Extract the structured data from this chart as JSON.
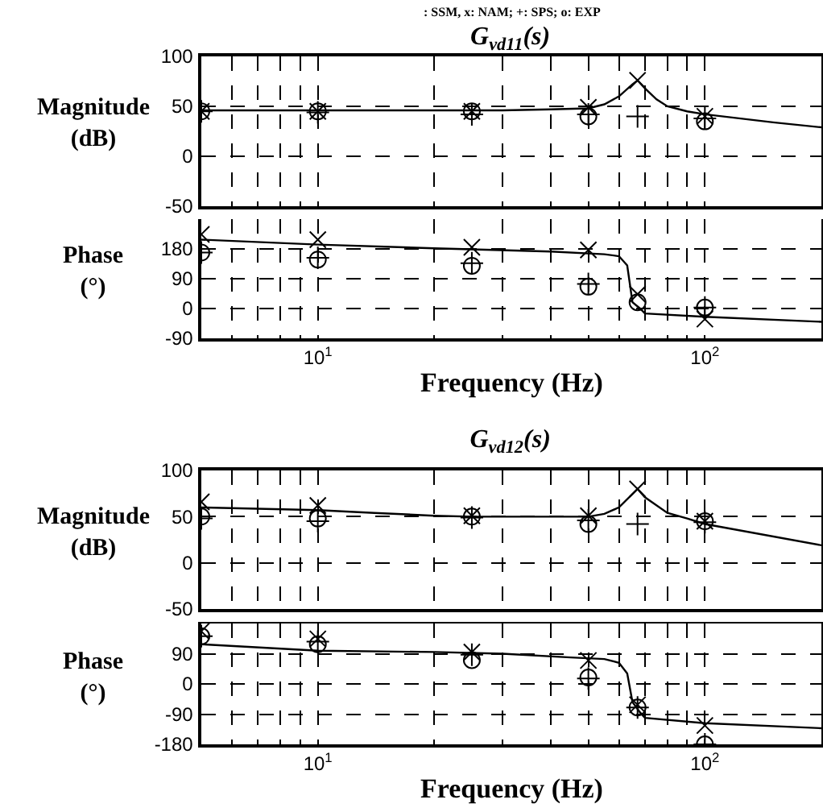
{
  "chart_data": [
    {
      "type": "line",
      "title": "G$_{vd11}$(s)",
      "ylabel": "Magnitude (dB)",
      "annotations": [
        ": SSM, x: NAM; +: SPS; o: EXP"
      ],
      "log": "x",
      "xlim": [
        5,
        200
      ],
      "xticks": [
        {
          "value": 6,
          "label": null
        },
        {
          "value": 7,
          "label": null
        },
        {
          "value": 8,
          "label": null
        },
        {
          "value": 9,
          "label": null
        },
        {
          "value": 10,
          "label": null
        },
        {
          "value": 20,
          "label": null
        },
        {
          "value": 30,
          "label": null
        },
        {
          "value": 40,
          "label": null
        },
        {
          "value": 50,
          "label": null
        },
        {
          "value": 60,
          "label": null
        },
        {
          "value": 70,
          "label": null
        },
        {
          "value": 80,
          "label": null
        },
        {
          "value": 90,
          "label": null
        },
        {
          "value": 100,
          "label": null
        }
      ],
      "ylim": [
        -50,
        100
      ],
      "yticks": [
        -50,
        0,
        50,
        100
      ],
      "grid": true,
      "tick_labels": "y",
      "series": [
        {
          "color": "#000000",
          "marker": "none",
          "x": [
            5,
            10,
            20,
            30,
            40,
            50,
            55,
            60,
            65,
            67,
            70,
            75,
            80,
            90,
            100,
            150,
            200
          ],
          "values": [
            46,
            46,
            46,
            46,
            47,
            48,
            52,
            60,
            72,
            76,
            68,
            57,
            50,
            45,
            42,
            34,
            29
          ]
        },
        {
          "type": "scatter",
          "color": "#000000",
          "x": [
            5,
            10,
            25,
            50,
            67,
            100
          ],
          "values": [
            45,
            45,
            45,
            49,
            76,
            40
          ]
        },
        {
          "type": "scatter",
          "color": "#000000",
          "x": [
            5,
            10,
            25,
            50,
            67,
            100
          ],
          "values": [
            45,
            44,
            42,
            42,
            40,
            38
          ]
        },
        {
          "type": "scatter",
          "color": "#000000",
          "x": [
            5,
            10,
            25,
            50,
            67,
            100
          ],
          "values": [
            45,
            45,
            45,
            40,
            null,
            35
          ]
        }
      ]
    },
    {
      "type": "line",
      "xlabel": "Frequency (Hz)",
      "ylabel": "Phase (°)",
      "log": "x",
      "xlim": [
        5,
        200
      ],
      "xticks": [
        {
          "value": 6,
          "label": null
        },
        {
          "value": 7,
          "label": null
        },
        {
          "value": 8,
          "label": null
        },
        {
          "value": 9,
          "label": null
        },
        {
          "value": 10,
          "label": "10$^{1}$"
        },
        {
          "value": 20,
          "label": null
        },
        {
          "value": 30,
          "label": null
        },
        {
          "value": 40,
          "label": null
        },
        {
          "value": 50,
          "label": null
        },
        {
          "value": 60,
          "label": null
        },
        {
          "value": 70,
          "label": null
        },
        {
          "value": 80,
          "label": null
        },
        {
          "value": 90,
          "label": null
        },
        {
          "value": 100,
          "label": "10$^{2}$"
        }
      ],
      "ylim": [
        -90,
        270
      ],
      "yticks": [
        -90,
        0,
        90,
        180
      ],
      "grid": true,
      "series": [
        {
          "color": "#000000",
          "marker": "none",
          "x": [
            5,
            10,
            20,
            40,
            55,
            60,
            63,
            65,
            68,
            70,
            100,
            200
          ],
          "values": [
            208,
            193,
            182,
            172,
            164,
            158,
            130,
            19,
            0,
            -15,
            -25,
            -40
          ]
        },
        {
          "type": "scatter",
          "color": "#000000",
          "x": [
            5,
            10,
            25,
            50,
            67,
            100
          ],
          "values": [
            224,
            208,
            185,
            177,
            43,
            -32
          ]
        },
        {
          "type": "scatter",
          "color": "#000000",
          "x": [
            5,
            10,
            25,
            50,
            67,
            100
          ],
          "values": [
            169,
            153,
            137,
            74,
            null,
            3
          ]
        },
        {
          "type": "scatter",
          "color": "#000000",
          "x": [
            5,
            10,
            25,
            50,
            67,
            100
          ],
          "values": [
            169,
            148,
            129,
            66,
            19,
            3
          ]
        }
      ]
    },
    {
      "type": "line",
      "title": "G$_{vd12}$(s)",
      "ylabel": "Magnitude (dB)",
      "log": "x",
      "xlim": [
        5,
        200
      ],
      "xticks": [
        {
          "value": 6,
          "label": null
        },
        {
          "value": 7,
          "label": null
        },
        {
          "value": 8,
          "label": null
        },
        {
          "value": 9,
          "label": null
        },
        {
          "value": 10,
          "label": null
        },
        {
          "value": 20,
          "label": null
        },
        {
          "value": 30,
          "label": null
        },
        {
          "value": 40,
          "label": null
        },
        {
          "value": 50,
          "label": null
        },
        {
          "value": 60,
          "label": null
        },
        {
          "value": 70,
          "label": null
        },
        {
          "value": 80,
          "label": null
        },
        {
          "value": 90,
          "label": null
        },
        {
          "value": 100,
          "label": null
        }
      ],
      "ylim": [
        -50,
        100
      ],
      "yticks": [
        -50,
        0,
        50,
        100
      ],
      "grid": true,
      "tick_labels": "y",
      "series": [
        {
          "color": "#000000",
          "marker": "none",
          "x": [
            5,
            10,
            14,
            20,
            25,
            50,
            55,
            60,
            67,
            70,
            80,
            90,
            100,
            200
          ],
          "values": [
            60,
            57,
            54,
            51,
            50,
            50,
            53,
            60,
            80,
            71,
            54,
            48,
            42,
            19
          ]
        },
        {
          "type": "scatter",
          "color": "#000000",
          "x": [
            5,
            10,
            25,
            50,
            67,
            100
          ],
          "values": [
            66,
            62,
            51,
            51,
            80,
            45
          ]
        },
        {
          "type": "scatter",
          "color": "#000000",
          "x": [
            5,
            10,
            25,
            50,
            67,
            100
          ],
          "values": [
            48,
            45,
            49,
            46,
            42,
            44
          ]
        },
        {
          "type": "scatter",
          "color": "#000000",
          "x": [
            5,
            10,
            25,
            50,
            67,
            100
          ],
          "values": [
            50,
            48,
            50,
            42,
            null,
            45
          ]
        }
      ]
    },
    {
      "type": "line",
      "xlabel": "Frequency (Hz)",
      "ylabel": "Phase (°)",
      "log": "x",
      "xlim": [
        5,
        200
      ],
      "xticks": [
        {
          "value": 6,
          "label": null
        },
        {
          "value": 7,
          "label": null
        },
        {
          "value": 8,
          "label": null
        },
        {
          "value": 9,
          "label": null
        },
        {
          "value": 10,
          "label": "10$^{1}$"
        },
        {
          "value": 20,
          "label": null
        },
        {
          "value": 30,
          "label": null
        },
        {
          "value": 40,
          "label": null
        },
        {
          "value": 50,
          "label": null
        },
        {
          "value": 60,
          "label": null
        },
        {
          "value": 70,
          "label": null
        },
        {
          "value": 80,
          "label": null
        },
        {
          "value": 90,
          "label": null
        },
        {
          "value": 100,
          "label": "10$^{2}$"
        }
      ],
      "ylim": [
        -180,
        180
      ],
      "yticks": [
        -180,
        -90,
        0,
        90
      ],
      "grid": true,
      "series": [
        {
          "color": "#000000",
          "marker": "none",
          "x": [
            5,
            10,
            20,
            30,
            45,
            55,
            60,
            63,
            65,
            68,
            70,
            100,
            200
          ],
          "values": [
            118,
            99,
            95,
            90,
            79,
            74,
            63,
            31,
            -54,
            -85,
            -101,
            -117,
            -132
          ]
        },
        {
          "type": "scatter",
          "color": "#000000",
          "x": [
            5,
            10,
            25,
            50,
            67,
            100
          ],
          "values": [
            157,
            134,
            95,
            70,
            -62,
            -124
          ]
        },
        {
          "type": "scatter",
          "color": "#000000",
          "x": [
            5,
            10,
            25,
            50,
            67,
            100
          ],
          "values": [
            142,
            126,
            87,
            16,
            -70,
            -180
          ]
        },
        {
          "type": "scatter",
          "color": "#000000",
          "x": [
            5,
            10,
            25,
            50,
            67,
            100
          ],
          "values": [
            142,
            118,
            71,
            19,
            -70,
            -180
          ]
        }
      ]
    }
  ]
}
